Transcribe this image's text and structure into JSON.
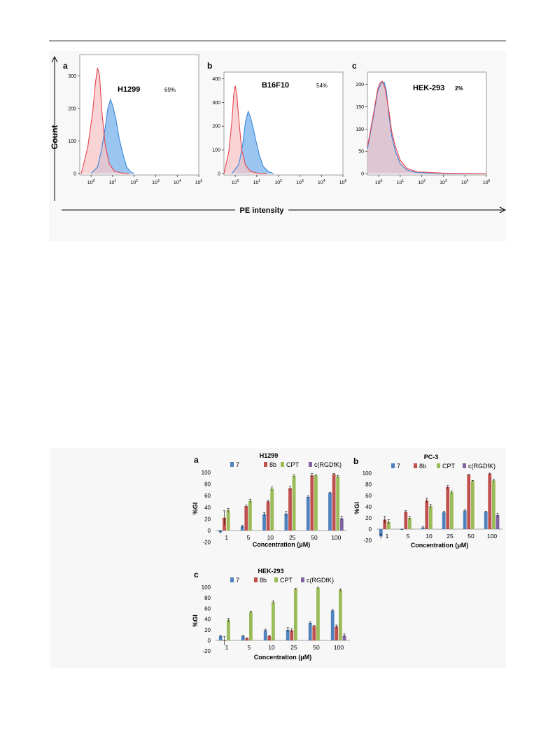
{
  "flow_figure": {
    "y_axis_label": "Count",
    "x_axis_label": "PE intensity",
    "panels": [
      {
        "letter": "a",
        "cell_line": "H1299",
        "percent": "69%"
      },
      {
        "letter": "b",
        "cell_line": "B16F10",
        "percent": "54%"
      },
      {
        "letter": "c",
        "cell_line": "HEK-293",
        "percent": "2%"
      }
    ]
  },
  "colors": {
    "control_line": "#e8424b",
    "control_fill": "#f6c5c8",
    "sample_line": "#3a87d8",
    "sample_fill": "#8fbfef",
    "overlap_fill": "#9d9ac9",
    "series_7": "#4f81bd",
    "series_8b": "#c0504d",
    "series_CPT": "#9bbb59",
    "series_cRGDfK": "#8064a2"
  },
  "chart_data": [
    {
      "type": "area",
      "panel": "a",
      "title": "H1299",
      "annotation": "69%",
      "xlabel": "PE intensity",
      "ylabel": "Count",
      "x_scale": "log",
      "xlim": [
        0.3,
        100000
      ],
      "x_ticks": [
        "10^0",
        "10^1",
        "10^2",
        "10^3",
        "10^4",
        "10^5"
      ],
      "y_ticks": [
        0,
        100,
        200,
        300
      ],
      "ylim": [
        0,
        340
      ],
      "series": [
        {
          "peak_x": 2,
          "peak_y": 325,
          "x": [
            0.35,
            0.7,
            1.2,
            1.6,
            2,
            2.5,
            3.2,
            4.5,
            7,
            12,
            25,
            60
          ],
          "y": [
            0,
            80,
            190,
            280,
            325,
            300,
            190,
            90,
            30,
            8,
            2,
            0
          ]
        },
        {
          "peak_x": 8,
          "peak_y": 228,
          "x": [
            1,
            2,
            3,
            4.5,
            6,
            8,
            10,
            14,
            20,
            30,
            45,
            70,
            100
          ],
          "y": [
            0,
            20,
            70,
            140,
            200,
            228,
            210,
            170,
            110,
            60,
            20,
            5,
            0
          ]
        }
      ]
    },
    {
      "type": "area",
      "panel": "b",
      "title": "B16F10",
      "annotation": "54%",
      "xlabel": "PE intensity",
      "ylabel": "Count",
      "x_scale": "log",
      "xlim": [
        0.3,
        100000
      ],
      "x_ticks": [
        "10^0",
        "10^1",
        "10^2",
        "10^3",
        "10^4",
        "10^5"
      ],
      "y_ticks": [
        0,
        100,
        200,
        300,
        400
      ],
      "ylim": [
        0,
        410
      ],
      "series": [
        {
          "peak_x": 1,
          "peak_y": 370,
          "x": [
            0.3,
            0.5,
            0.7,
            0.85,
            1,
            1.2,
            1.5,
            2,
            3,
            5,
            10,
            30
          ],
          "y": [
            0,
            90,
            220,
            330,
            370,
            330,
            220,
            100,
            35,
            10,
            2,
            0
          ]
        },
        {
          "peak_x": 4,
          "peak_y": 262,
          "x": [
            0.7,
            1.5,
            2.2,
            3,
            4,
            5,
            6.5,
            9,
            13,
            20,
            35,
            60
          ],
          "y": [
            0,
            40,
            120,
            220,
            262,
            240,
            200,
            140,
            80,
            30,
            8,
            0
          ]
        }
      ]
    },
    {
      "type": "area",
      "panel": "c",
      "title": "HEK-293",
      "annotation": "2%",
      "xlabel": "PE intensity",
      "ylabel": "Count",
      "x_scale": "log",
      "xlim": [
        0.3,
        100000
      ],
      "x_ticks": [
        "10^0",
        "10^1",
        "10^2",
        "10^3",
        "10^4",
        "10^5"
      ],
      "y_ticks": [
        0,
        50,
        100,
        150,
        200
      ],
      "ylim": [
        0,
        212
      ],
      "series": [
        {
          "peak_x": 1.5,
          "peak_y": 207,
          "x": [
            0.3,
            0.6,
            0.9,
            1.2,
            1.5,
            2,
            3,
            4,
            6,
            10,
            20,
            60,
            1000,
            100000
          ],
          "y": [
            60,
            140,
            190,
            205,
            207,
            190,
            140,
            95,
            60,
            30,
            12,
            4,
            1,
            0
          ]
        },
        {
          "peak_x": 1.8,
          "peak_y": 205,
          "x": [
            0.3,
            0.6,
            0.9,
            1.3,
            1.8,
            2.3,
            3,
            4,
            6,
            10,
            20,
            60,
            1000,
            100000
          ],
          "y": [
            55,
            135,
            185,
            203,
            205,
            185,
            130,
            85,
            50,
            22,
            8,
            2,
            0,
            0
          ]
        }
      ]
    },
    {
      "type": "bar",
      "panel": "a",
      "title": "H1299",
      "xlabel": "Concentration (μM)",
      "ylabel": "%GI",
      "ylim": [
        -20,
        100
      ],
      "y_ticks": [
        -20,
        0,
        20,
        40,
        60,
        80,
        100
      ],
      "categories": [
        "1",
        "5",
        "10",
        "25",
        "50",
        "100"
      ],
      "series": [
        {
          "name": "7",
          "values": [
            -3,
            7,
            28,
            29,
            58,
            65
          ],
          "errors": [
            2,
            2,
            3,
            4,
            2,
            1
          ]
        },
        {
          "name": "8b",
          "values": [
            22,
            42,
            50,
            73,
            95,
            97
          ],
          "errors": [
            12,
            2,
            2,
            3,
            3,
            1
          ]
        },
        {
          "name": "CPT",
          "values": [
            35,
            51,
            72,
            94,
            95,
            93
          ],
          "errors": [
            3,
            3,
            3,
            2,
            1,
            2
          ]
        },
        {
          "name": "c(RGDfK)",
          "values": [
            0,
            0,
            0,
            0,
            0,
            21
          ],
          "errors": [
            0,
            0,
            0,
            0,
            0,
            4
          ]
        }
      ]
    },
    {
      "type": "bar",
      "panel": "b",
      "title": "PC-3",
      "xlabel": "Concentration (μM)",
      "ylabel": "%GI",
      "ylim": [
        -20,
        100
      ],
      "y_ticks": [
        -20,
        0,
        20,
        40,
        60,
        80,
        100
      ],
      "categories": [
        "1",
        "5",
        "10",
        "25",
        "50",
        "100"
      ],
      "series": [
        {
          "name": "7",
          "values": [
            -13,
            -1,
            3,
            30,
            33,
            31
          ],
          "errors": [
            4,
            1,
            2,
            2,
            2,
            1
          ]
        },
        {
          "name": "8b",
          "values": [
            17,
            31,
            51,
            75,
            97,
            99
          ],
          "errors": [
            6,
            2,
            4,
            3,
            1,
            1
          ]
        },
        {
          "name": "CPT",
          "values": [
            13,
            20,
            41,
            66,
            86,
            87
          ],
          "errors": [
            4,
            3,
            3,
            2,
            1,
            2
          ]
        },
        {
          "name": "c(RGDfK)",
          "values": [
            0,
            0,
            0,
            0,
            0,
            25
          ],
          "errors": [
            0,
            0,
            0,
            0,
            0,
            3
          ]
        }
      ]
    },
    {
      "type": "bar",
      "panel": "c",
      "title": "HEK-293",
      "xlabel": "Concentration (μM)",
      "ylabel": "%GI",
      "ylim": [
        -20,
        100
      ],
      "y_ticks": [
        -20,
        0,
        20,
        40,
        60,
        80,
        100
      ],
      "categories": [
        "1",
        "5",
        "10",
        "25",
        "50",
        "100"
      ],
      "series": [
        {
          "name": "7",
          "values": [
            8,
            8,
            19,
            20,
            33,
            56
          ],
          "errors": [
            2,
            2,
            2,
            4,
            2,
            2
          ]
        },
        {
          "name": "8b",
          "values": [
            -1,
            4,
            8,
            19,
            27,
            26
          ],
          "errors": [
            8,
            1,
            2,
            3,
            1,
            3
          ]
        },
        {
          "name": "CPT",
          "values": [
            38,
            53,
            72,
            97,
            99,
            95
          ],
          "errors": [
            3,
            2,
            2,
            1,
            1,
            2
          ]
        },
        {
          "name": "c(RGDfK)",
          "values": [
            0,
            0,
            0,
            0,
            0,
            9
          ],
          "errors": [
            0,
            0,
            0,
            0,
            0,
            3
          ]
        }
      ]
    }
  ]
}
